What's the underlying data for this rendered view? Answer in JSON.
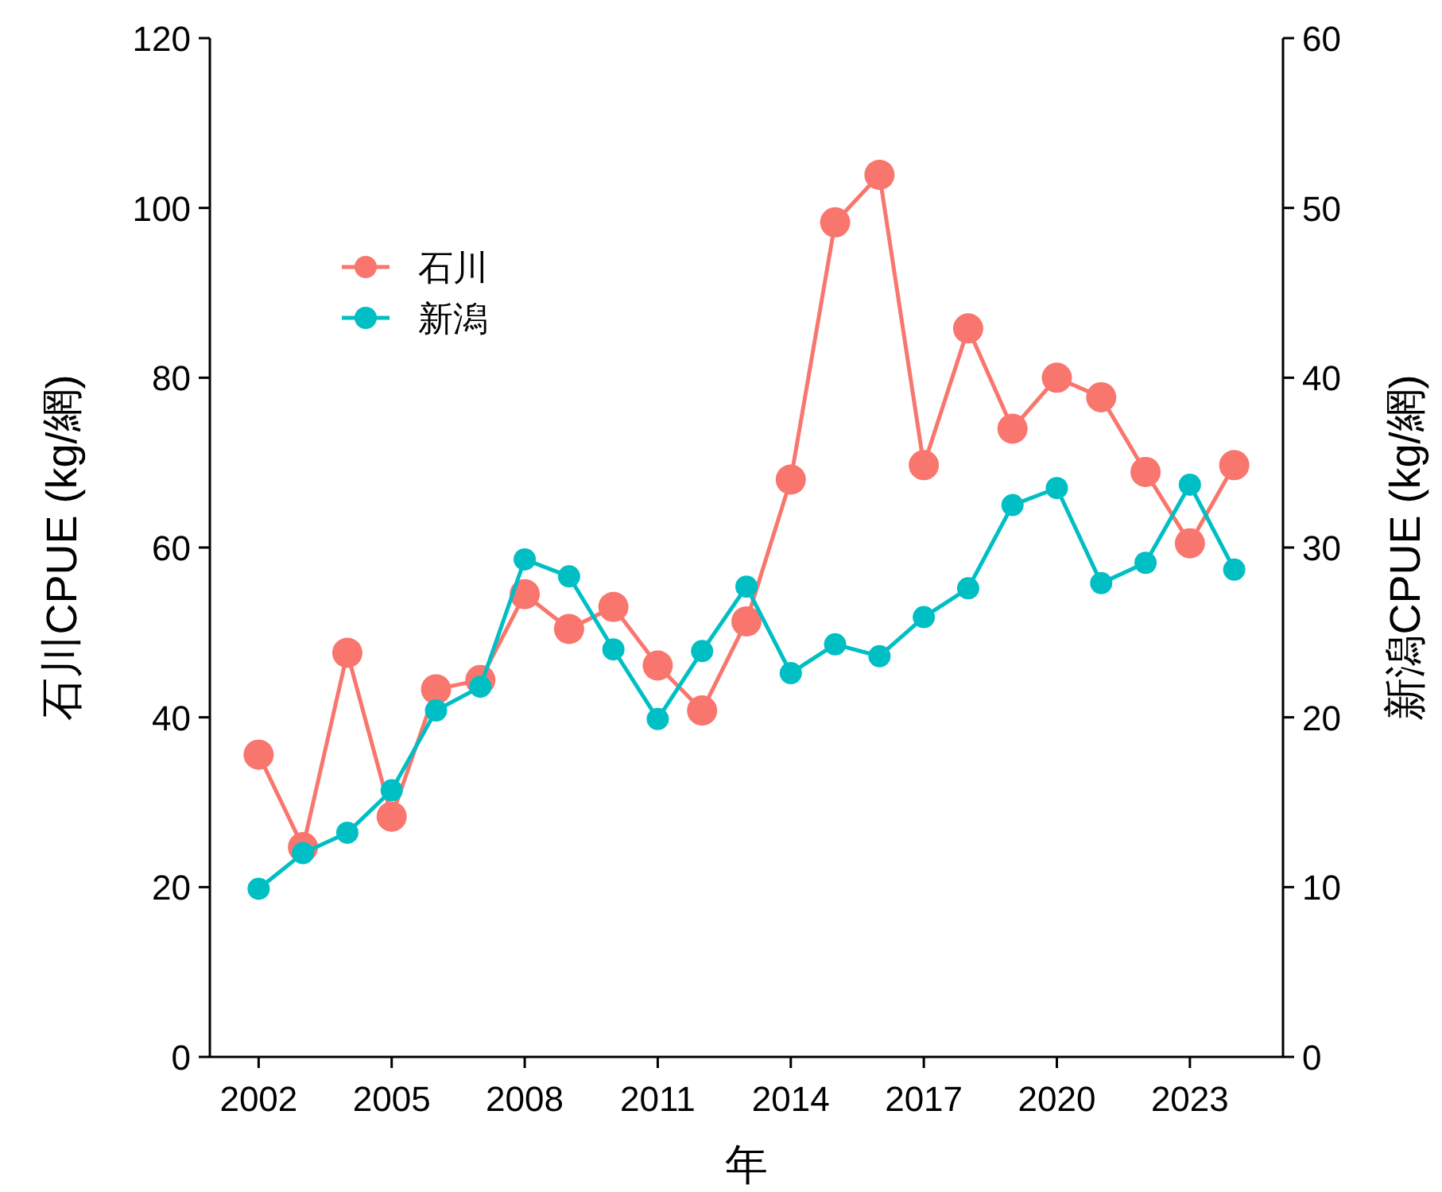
{
  "chart_data": {
    "type": "line",
    "xlabel": "年",
    "ylabel": "石川CPUE (kg/網)",
    "y2label": "新潟CPUE (kg/網)",
    "x": [
      2002,
      2003,
      2004,
      2005,
      2006,
      2007,
      2008,
      2009,
      2010,
      2011,
      2012,
      2013,
      2014,
      2015,
      2016,
      2017,
      2018,
      2019,
      2020,
      2021,
      2022,
      2023,
      2024
    ],
    "series": [
      {
        "name": "石川",
        "color": "#f8766d",
        "values": [
          35.6,
          24.7,
          47.6,
          28.3,
          43.3,
          44.4,
          54.5,
          50.4,
          53.0,
          46.1,
          40.8,
          51.3,
          68.0,
          98.3,
          103.9,
          69.7,
          85.8,
          74.0,
          80.0,
          77.7,
          68.9,
          60.5,
          69.7
        ]
      },
      {
        "name": "新潟",
        "color": "#00bfc4",
        "axis": "y2",
        "values": [
          9.9,
          12.0,
          13.2,
          15.7,
          20.4,
          21.8,
          29.3,
          28.3,
          24.0,
          19.9,
          23.9,
          27.7,
          22.6,
          24.3,
          23.6,
          25.9,
          27.6,
          32.5,
          33.5,
          27.9,
          29.1,
          33.7,
          28.7
        ]
      }
    ],
    "xlim": [
      2000.9,
      2025.1
    ],
    "xticks": [
      2002,
      2005,
      2008,
      2011,
      2014,
      2017,
      2020,
      2023
    ],
    "ylim": [
      0,
      120
    ],
    "yticks": [
      0,
      20,
      40,
      60,
      80,
      100,
      120
    ],
    "y2lim": [
      0,
      60
    ],
    "y2ticks": [
      0,
      10,
      20,
      30,
      40,
      50,
      60
    ],
    "marker": "circle",
    "line_style": "solid",
    "legend": "top left",
    "grid": false
  }
}
